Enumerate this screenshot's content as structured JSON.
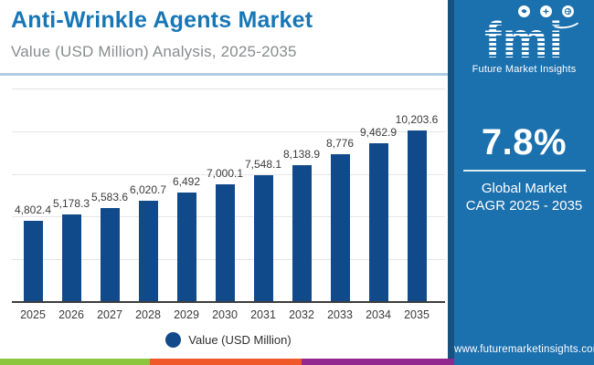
{
  "header": {
    "title": "Anti-Wrinkle Agents Market",
    "subtitle": "Value (USD Million) Analysis, 2025-2035"
  },
  "chart_data": {
    "type": "bar",
    "title": "Anti-Wrinkle Agents Market",
    "xlabel": "",
    "ylabel": "Value (USD Million)",
    "categories": [
      "2025",
      "2026",
      "2027",
      "2028",
      "2029",
      "2030",
      "2031",
      "2032",
      "2033",
      "2034",
      "2035"
    ],
    "values": [
      4802.4,
      5178.3,
      5583.6,
      6020.7,
      6492,
      7000.1,
      7548.1,
      8138.9,
      8776,
      9462.9,
      10203.6
    ],
    "value_labels": [
      "4,802.4",
      "5,178.3",
      "5,583.6",
      "6,020.7",
      "6,492",
      "7,000.1",
      "7,548.1",
      "8,138.9",
      "8,776",
      "9,462.9",
      "10,203.6"
    ],
    "ylim": [
      0,
      12660
    ],
    "grid": true,
    "gridline_divisions": 5,
    "legend_position": "bottom",
    "legend_entries": [
      "Value (USD Million)"
    ],
    "bar_color": "#114a8b"
  },
  "legend": {
    "label": "Value (USD Million)"
  },
  "sidebar": {
    "bg_color": "#1b70ae",
    "logo": {
      "text": "fmi",
      "tagline": "Future Market Insights",
      "icons": [
        "map-icon",
        "compass-icon",
        "globe-icon"
      ]
    },
    "cagr_value": "7.8%",
    "cagr_label_line1": "Global Market",
    "cagr_label_line2": "CAGR 2025 - 2035",
    "website": "www.futuremarketinsights.com"
  },
  "footer_strip": {
    "colors": [
      "#8cc63f",
      "#f0582a",
      "#91278f"
    ]
  },
  "accent_colors": {
    "title_blue": "#1777b6",
    "subtitle_gray": "#8a8c8e",
    "header_divider": "#b0cce2"
  }
}
